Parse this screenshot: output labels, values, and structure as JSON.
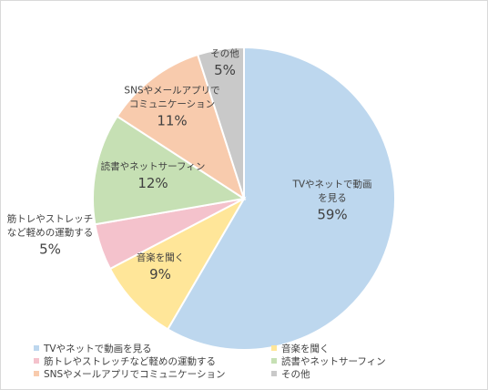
{
  "chart_data": {
    "type": "pie",
    "title": "",
    "slices": [
      {
        "label": "TVやネットで動画を見る",
        "label_lines": [
          "TVやネットで動画",
          "を見る"
        ],
        "value": 59,
        "pct_label": "59%",
        "color": "#bdd7ee"
      },
      {
        "label": "音楽を聞く",
        "label_lines": [
          "音楽を聞く"
        ],
        "value": 9,
        "pct_label": "9%",
        "color": "#ffe699"
      },
      {
        "label": "筋トレやストレッチなど軽めの運動する",
        "label_lines": [
          "筋トレやストレッチ",
          "など軽めの運動する"
        ],
        "value": 5,
        "pct_label": "5%",
        "color": "#f4c2cc"
      },
      {
        "label": "読書やネットサーフィン",
        "label_lines": [
          "読書やネットサーフィン"
        ],
        "value": 12,
        "pct_label": "12%",
        "color": "#c6e0b4"
      },
      {
        "label": "SNSやメールアプリでコミュニケーション",
        "label_lines": [
          "SNSやメールアプリで",
          "コミュニケーション"
        ],
        "value": 11,
        "pct_label": "11%",
        "color": "#f8cbad"
      },
      {
        "label": "その他",
        "label_lines": [
          "その他"
        ],
        "value": 5,
        "pct_label": "5%",
        "color": "#c9c9c9"
      }
    ],
    "legend_position": "bottom",
    "start_angle": "12 o'clock",
    "direction": "clockwise"
  }
}
